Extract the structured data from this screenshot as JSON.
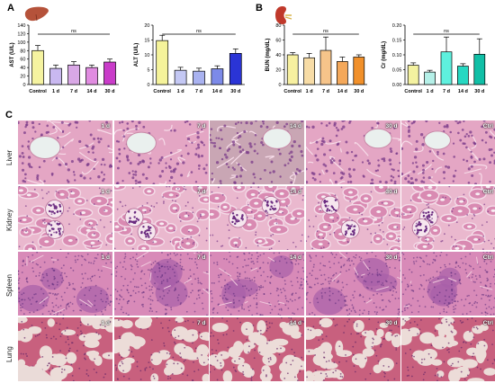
{
  "panels": {
    "a": "A",
    "b": "B",
    "c": "C"
  },
  "colors": {
    "control": "#f5f3a0",
    "d1_purple": "#c9b8f0",
    "d7_purple": "#d9a8e6",
    "d14_purple": "#e08ce0",
    "d30_purple": "#c93cc9",
    "alt_control": "#f5f39a",
    "alt_1d": "#c4c8f4",
    "alt_7d": "#a9b2f0",
    "alt_14d": "#7c8ae8",
    "alt_30d": "#2a34d6",
    "bun_control": "#f7f0a0",
    "bun_1d": "#f7dca6",
    "bun_7d": "#f6c48a",
    "bun_14d": "#f4a85a",
    "bun_30d": "#f1902a",
    "cr_control": "#f4f2a0",
    "cr_1d": "#b5f0e8",
    "cr_7d": "#5ef0de",
    "cr_14d": "#26d8c2",
    "cr_30d": "#10bfa6",
    "liver_icon": "#b5523a",
    "kidney_icon": "#c0392b"
  },
  "chart_data": [
    {
      "type": "bar",
      "categories": [
        "Control",
        "1 d",
        "7 d",
        "14 d",
        "30 d"
      ],
      "values": [
        80,
        38,
        46,
        40,
        53
      ],
      "errors": [
        12,
        8,
        8,
        6,
        7
      ],
      "ylabel": "AST (U/L)",
      "ylim": [
        0,
        140
      ],
      "yticks": [
        0,
        20,
        40,
        60,
        80,
        100,
        120,
        140
      ],
      "annotation": "ns",
      "colors": [
        "#f5f3a0",
        "#c9b8f0",
        "#d9a8e6",
        "#e08ce0",
        "#c93cc9"
      ]
    },
    {
      "type": "bar",
      "categories": [
        "Control",
        "1 d",
        "7 d",
        "14 d",
        "30 d"
      ],
      "values": [
        14.8,
        4.8,
        4.5,
        5.3,
        10.5
      ],
      "errors": [
        1.8,
        1.0,
        1.0,
        1.0,
        1.5
      ],
      "ylabel": "ALT (U/L)",
      "ylim": [
        0,
        20
      ],
      "yticks": [
        0,
        5,
        10,
        15,
        20
      ],
      "annotation": "ns",
      "colors": [
        "#f5f39a",
        "#c4c8f4",
        "#a9b2f0",
        "#7c8ae8",
        "#2a34d6"
      ]
    },
    {
      "type": "bar",
      "categories": [
        "Control",
        "1 d",
        "7 d",
        "14 d",
        "30 d"
      ],
      "values": [
        40,
        36,
        46,
        31,
        37
      ],
      "errors": [
        3,
        6,
        18,
        6,
        3
      ],
      "ylabel": "BUN (mg/dL)",
      "ylim": [
        0,
        80
      ],
      "yticks": [
        0,
        20,
        40,
        60,
        80
      ],
      "annotation": "ns",
      "colors": [
        "#f7f0a0",
        "#f7dca6",
        "#f6c48a",
        "#f4a85a",
        "#f1902a"
      ]
    },
    {
      "type": "bar",
      "categories": [
        "Control",
        "1 d",
        "7 d",
        "14 d",
        "30 d"
      ],
      "values": [
        0.065,
        0.042,
        0.11,
        0.062,
        0.102
      ],
      "errors": [
        0.008,
        0.006,
        0.05,
        0.008,
        0.052
      ],
      "ylabel": "Cr (mg/dL)",
      "ylim": [
        0,
        0.2
      ],
      "yticks": [
        0.0,
        0.05,
        0.1,
        0.15,
        0.2
      ],
      "annotation": "ns",
      "colors": [
        "#f4f2a0",
        "#b5f0e8",
        "#5ef0de",
        "#26d8c2",
        "#10bfa6"
      ]
    }
  ],
  "histology": {
    "rows": [
      {
        "label": "Liver",
        "tiles": [
          "1 d",
          "7 d",
          "14 d",
          "30 d",
          "Ctrl"
        ]
      },
      {
        "label": "Kidney",
        "tiles": [
          "1 d",
          "7 d",
          "14 d",
          "30 d",
          "Ctrl"
        ]
      },
      {
        "label": "Spleen",
        "tiles": [
          "1 d",
          "7 d",
          "14 d",
          "30 d",
          "Ctrl"
        ]
      },
      {
        "label": "Lung",
        "tiles": [
          "1 d",
          "7 d",
          "14 d",
          "30 d",
          "Ctrl"
        ]
      }
    ]
  }
}
